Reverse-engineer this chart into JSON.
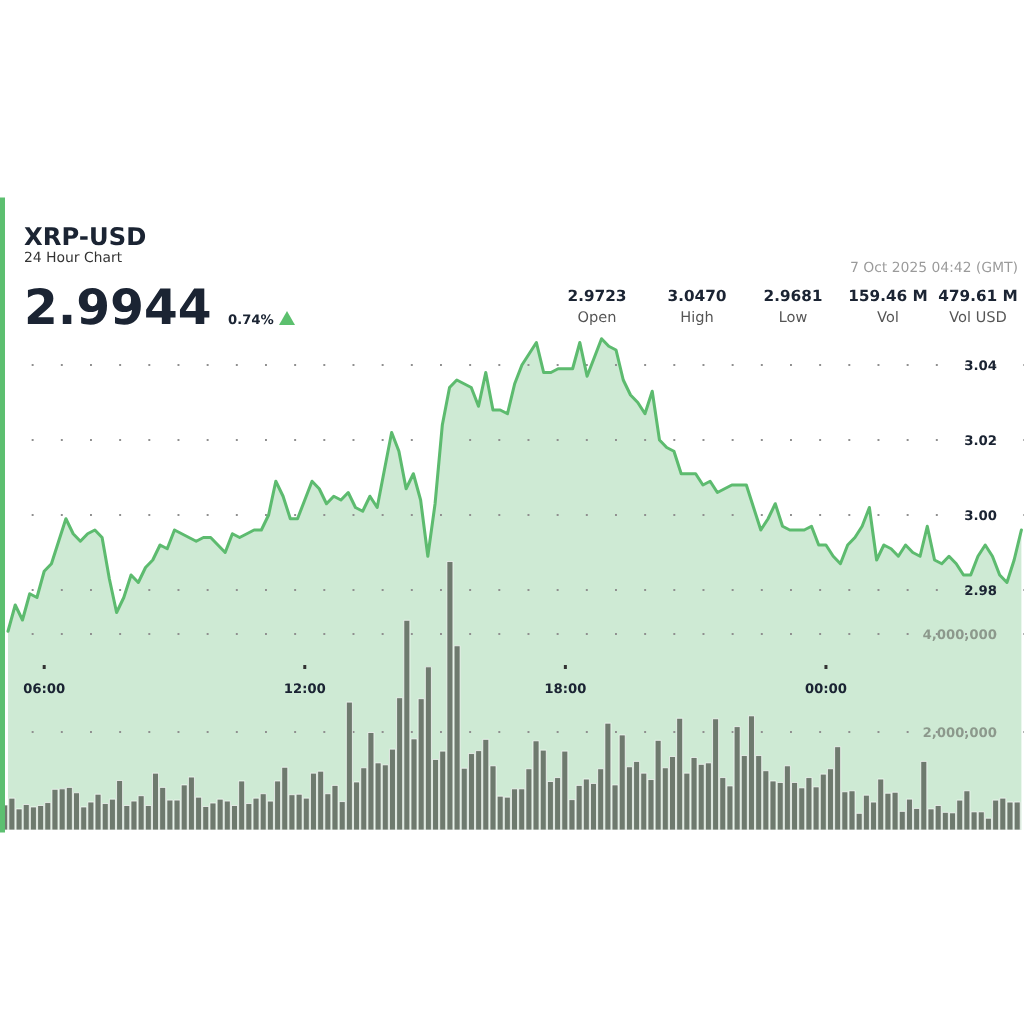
{
  "chart_data": {
    "type": "area",
    "title": "XRP-USD",
    "subtitle": "24 Hour Chart",
    "annotations": [
      "2.9944",
      "0.74%",
      "2.9723",
      "Open",
      "3.0470",
      "High",
      "2.9681",
      "Low",
      "159.46 M",
      "Vol",
      "479.61 M",
      "Vol USD",
      "7 Oct 2025 04:42 (GMT)"
    ],
    "xlim": [
      5.04,
      28.56
    ],
    "xticks": [
      {
        "value": 6,
        "label": "06:00"
      },
      {
        "value": 12,
        "label": "12:00"
      },
      {
        "value": 18,
        "label": "18:00"
      },
      {
        "value": 24,
        "label": "00:00"
      }
    ],
    "ylim": [
      2.916,
      3.084
    ],
    "yticks": [
      2.98,
      {
        "value": 3.0,
        "label": "3.00"
      },
      3.02,
      3.04
    ],
    "y2lim": [
      0,
      12860000
    ],
    "y2ticks": [
      {
        "value": 2000000,
        "label": "2,000,000"
      },
      {
        "value": 4000000,
        "label": "4,000,000"
      }
    ],
    "grid": "y",
    "series": [
      {
        "color": "#5dbb6f",
        "x": [
          5.167,
          5.333,
          5.5,
          5.667,
          5.833,
          6,
          6.167,
          6.333,
          6.5,
          6.667,
          6.833,
          7,
          7.167,
          7.333,
          7.5,
          7.667,
          7.833,
          8,
          8.167,
          8.333,
          8.5,
          8.667,
          8.833,
          9,
          9.167,
          9.333,
          9.5,
          9.667,
          9.833,
          10,
          10.167,
          10.333,
          10.5,
          10.667,
          10.833,
          11,
          11.167,
          11.333,
          11.5,
          11.667,
          11.833,
          12,
          12.167,
          12.333,
          12.5,
          12.667,
          12.833,
          13,
          13.167,
          13.333,
          13.5,
          13.667,
          13.833,
          14,
          14.167,
          14.333,
          14.5,
          14.667,
          14.833,
          15,
          15.167,
          15.333,
          15.5,
          15.667,
          15.833,
          16,
          16.167,
          16.333,
          16.5,
          16.667,
          16.833,
          17,
          17.167,
          17.333,
          17.5,
          17.667,
          17.833,
          18,
          18.167,
          18.333,
          18.5,
          18.667,
          18.833,
          19,
          19.167,
          19.333,
          19.5,
          19.667,
          19.833,
          20,
          20.167,
          20.333,
          20.5,
          20.667,
          20.833,
          21,
          21.167,
          21.333,
          21.5,
          21.667,
          21.833,
          22,
          22.167,
          22.333,
          22.5,
          22.667,
          22.833,
          23,
          23.167,
          23.333,
          23.5,
          23.667,
          23.833,
          24,
          24.167,
          24.333,
          24.5,
          24.667,
          24.833,
          25,
          25.167,
          25.333,
          25.5,
          25.667,
          25.833,
          26,
          26.167,
          26.333,
          26.5,
          26.667,
          26.833,
          27,
          27.167,
          27.333,
          27.5,
          27.667,
          27.833,
          28,
          28.167,
          28.333,
          28.5
        ],
        "values": [
          2.969,
          2.976,
          2.972,
          2.979,
          2.978,
          2.985,
          2.987,
          2.993,
          2.999,
          2.995,
          2.993,
          2.995,
          2.996,
          2.994,
          2.983,
          2.974,
          2.978,
          2.984,
          2.982,
          2.986,
          2.988,
          2.992,
          2.991,
          2.996,
          2.995,
          2.994,
          2.993,
          2.994,
          2.994,
          2.992,
          2.99,
          2.995,
          2.994,
          2.995,
          2.996,
          2.996,
          3.0,
          3.009,
          3.005,
          2.999,
          2.999,
          3.004,
          3.009,
          3.007,
          3.003,
          3.005,
          3.004,
          3.006,
          3.002,
          3.001,
          3.005,
          3.002,
          3.012,
          3.022,
          3.017,
          3.007,
          3.011,
          3.004,
          2.989,
          3.003,
          3.024,
          3.034,
          3.036,
          3.035,
          3.034,
          3.029,
          3.038,
          3.028,
          3.028,
          3.027,
          3.035,
          3.04,
          3.043,
          3.046,
          3.038,
          3.038,
          3.039,
          3.039,
          3.039,
          3.046,
          3.037,
          3.042,
          3.047,
          3.045,
          3.044,
          3.036,
          3.032,
          3.03,
          3.027,
          3.033,
          3.02,
          3.018,
          3.017,
          3.011,
          3.011,
          3.011,
          3.008,
          3.009,
          3.006,
          3.007,
          3.008,
          3.008,
          3.008,
          3.002,
          2.996,
          2.999,
          3.003,
          2.997,
          2.996,
          2.996,
          2.996,
          2.997,
          2.992,
          2.992,
          2.989,
          2.987,
          2.992,
          2.994,
          2.997,
          3.002,
          2.988,
          2.992,
          2.991,
          2.989,
          2.992,
          2.99,
          2.989,
          2.997,
          2.988,
          2.987,
          2.989,
          2.987,
          2.984,
          2.984,
          2.989,
          2.992,
          2.989,
          2.984,
          2.982,
          2.988,
          2.996
        ]
      },
      {
        "type": "bar",
        "axis": "y2",
        "color": "#6e7a6e",
        "x": [
          5.091,
          5.256,
          5.422,
          5.587,
          5.752,
          5.918,
          6.083,
          6.248,
          6.414,
          6.579,
          6.744,
          6.91,
          7.075,
          7.24,
          7.406,
          7.571,
          7.736,
          7.902,
          8.067,
          8.232,
          8.398,
          8.563,
          8.728,
          8.894,
          9.059,
          9.224,
          9.39,
          9.555,
          9.72,
          9.886,
          10.051,
          10.216,
          10.382,
          10.547,
          10.712,
          10.878,
          11.043,
          11.208,
          11.374,
          11.539,
          11.704,
          11.87,
          12.035,
          12.2,
          12.366,
          12.531,
          12.696,
          12.862,
          13.027,
          13.192,
          13.358,
          13.523,
          13.688,
          13.854,
          14.019,
          14.184,
          14.35,
          14.515,
          14.68,
          14.846,
          15.011,
          15.176,
          15.342,
          15.507,
          15.672,
          15.838,
          16.003,
          16.168,
          16.334,
          16.499,
          16.664,
          16.829,
          16.995,
          17.16,
          17.325,
          17.491,
          17.656,
          17.821,
          17.987,
          18.152,
          18.317,
          18.483,
          18.648,
          18.813,
          18.979,
          19.144,
          19.309,
          19.475,
          19.64,
          19.805,
          19.971,
          20.136,
          20.301,
          20.467,
          20.632,
          20.797,
          20.963,
          21.128,
          21.293,
          21.459,
          21.624,
          21.789,
          21.955,
          22.12,
          22.285,
          22.451,
          22.616,
          22.781,
          22.947,
          23.112,
          23.277,
          23.443,
          23.608,
          23.773,
          23.939,
          24.104,
          24.269,
          24.435,
          24.6,
          24.765,
          24.931,
          25.096,
          25.261,
          25.427,
          25.592,
          25.757,
          25.923,
          26.088,
          26.253,
          26.419,
          26.584,
          26.749,
          26.915,
          27.08,
          27.245,
          27.411,
          27.576,
          27.741,
          27.907,
          28.072,
          28.237,
          28.403
        ],
        "values": [
          510000,
          650000,
          430000,
          520000,
          470000,
          500000,
          560000,
          830000,
          840000,
          870000,
          760000,
          470000,
          570000,
          730000,
          540000,
          630000,
          1010000,
          500000,
          590000,
          700000,
          500000,
          1160000,
          870000,
          610000,
          610000,
          920000,
          1080000,
          670000,
          480000,
          550000,
          630000,
          590000,
          500000,
          1000000,
          540000,
          650000,
          740000,
          590000,
          1000000,
          1280000,
          720000,
          730000,
          650000,
          1160000,
          1200000,
          740000,
          910000,
          580000,
          2610000,
          980000,
          1270000,
          1990000,
          1370000,
          1330000,
          1650000,
          2700000,
          4280000,
          1860000,
          2680000,
          3330000,
          1440000,
          1610000,
          5480000,
          3760000,
          1260000,
          1560000,
          1620000,
          1850000,
          1310000,
          690000,
          670000,
          840000,
          840000,
          1250000,
          1820000,
          1630000,
          990000,
          1070000,
          1610000,
          620000,
          910000,
          1040000,
          950000,
          1250000,
          2180000,
          920000,
          1940000,
          1290000,
          1400000,
          1160000,
          1030000,
          1830000,
          1270000,
          1500000,
          2280000,
          1160000,
          1480000,
          1340000,
          1370000,
          2270000,
          1070000,
          900000,
          2110000,
          1520000,
          2330000,
          1520000,
          1210000,
          1000000,
          970000,
          1310000,
          970000,
          860000,
          1070000,
          880000,
          1140000,
          1250000,
          1700000,
          780000,
          800000,
          340000,
          710000,
          570000,
          1040000,
          750000,
          770000,
          380000,
          630000,
          440000,
          1400000,
          430000,
          500000,
          360000,
          350000,
          610000,
          800000,
          370000,
          370000,
          240000,
          610000,
          650000,
          570000,
          570000
        ]
      }
    ]
  }
}
